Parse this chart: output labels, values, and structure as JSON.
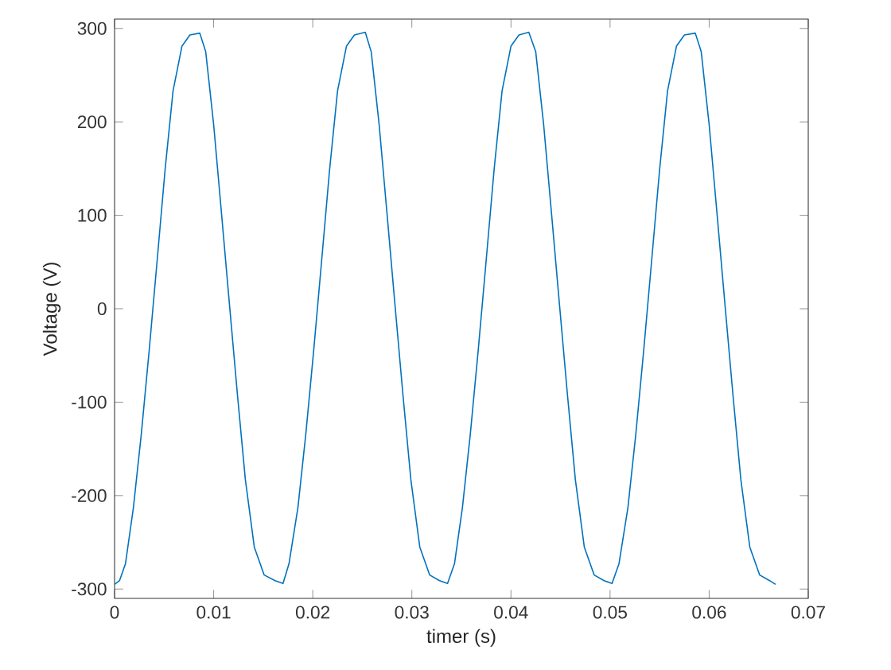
{
  "chart_data": {
    "type": "line",
    "xlabel": "timer (s)",
    "ylabel": "Voltage (V)",
    "xlim": [
      0,
      0.07
    ],
    "ylim": [
      -310,
      310
    ],
    "xticks": [
      0,
      0.01,
      0.02,
      0.03,
      0.04,
      0.05,
      0.06,
      0.07
    ],
    "yticks": [
      -300,
      -200,
      -100,
      0,
      100,
      200,
      300
    ],
    "grid": false,
    "marker": "none",
    "line_style": "solid",
    "series": [
      {
        "color": "#0072bd",
        "x": [
          0,
          0.0005,
          0.0011,
          0.0019,
          0.0027,
          0.0035,
          0.0043,
          0.0051,
          0.0059,
          0.0068,
          0.0076,
          0.0086,
          0.0092,
          0.01,
          0.0108,
          0.0116,
          0.0124,
          0.0132,
          0.0141,
          0.0151,
          0.0162,
          0.017,
          0.0176,
          0.0185,
          0.0193,
          0.0201,
          0.0209,
          0.0217,
          0.0225,
          0.0234,
          0.0242,
          0.0253,
          0.0259,
          0.0267,
          0.0275,
          0.0283,
          0.0291,
          0.0299,
          0.0308,
          0.0318,
          0.0328,
          0.0336,
          0.0343,
          0.0351,
          0.0359,
          0.0367,
          0.0375,
          0.0383,
          0.0391,
          0.04,
          0.0408,
          0.0418,
          0.0425,
          0.0433,
          0.0441,
          0.0449,
          0.0457,
          0.0465,
          0.0474,
          0.0484,
          0.0494,
          0.0502,
          0.0509,
          0.0518,
          0.0526,
          0.0534,
          0.0542,
          0.055,
          0.0558,
          0.0567,
          0.0575,
          0.0586,
          0.0592,
          0.06,
          0.0608,
          0.0616,
          0.0624,
          0.0632,
          0.0641,
          0.0651,
          0.0661,
          0.0667
        ],
        "values": [
          -295,
          -291,
          -273,
          -213,
          -134,
          -44,
          52,
          149,
          233,
          281,
          293,
          295,
          275,
          197,
          101,
          4,
          -92,
          -183,
          -255,
          -285,
          -291,
          -294,
          -273,
          -213,
          -134,
          -44,
          52,
          149,
          233,
          281,
          293,
          296,
          275,
          197,
          101,
          4,
          -92,
          -183,
          -255,
          -285,
          -291,
          -294,
          -273,
          -213,
          -134,
          -44,
          52,
          149,
          233,
          281,
          293,
          296,
          275,
          197,
          101,
          4,
          -92,
          -183,
          -255,
          -285,
          -291,
          -294,
          -273,
          -213,
          -134,
          -44,
          52,
          149,
          233,
          281,
          293,
          295,
          275,
          197,
          101,
          4,
          -92,
          -183,
          -255,
          -285,
          -291,
          -295
        ]
      }
    ]
  }
}
